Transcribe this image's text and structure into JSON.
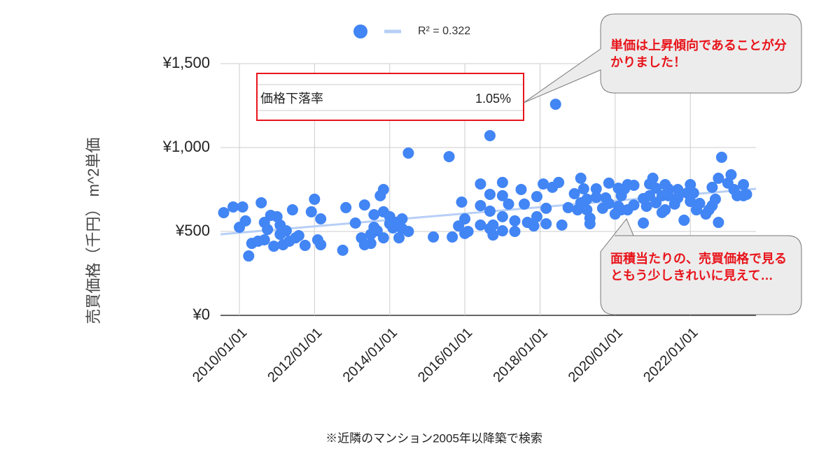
{
  "chart_data": {
    "type": "scatter",
    "y_label": "売買価格（千円） m^2単価",
    "x_label": "※近隣のマンション2005年以降築で検索",
    "xlim": [
      "2009/07/01",
      "2023/10/01"
    ],
    "xticks": [
      "2010/01/01",
      "2012/01/01",
      "2014/01/01",
      "2016/01/01",
      "2018/01/01",
      "2020/01/01",
      "2022/01/01"
    ],
    "ylim": [
      0,
      1500
    ],
    "yticks": [
      {
        "value": 0,
        "label": "¥0"
      },
      {
        "value": 500,
        "label": "¥500"
      },
      {
        "value": 1000,
        "label": "¥1,000"
      },
      {
        "value": 1500,
        "label": "¥1,500"
      }
    ],
    "grid": true,
    "series": [
      {
        "color": "#4285f4",
        "x": [
          "2009/08/01",
          "2009/11/01",
          "2010/01/01",
          "2010/02/01",
          "2010/03/01",
          "2010/04/01",
          "2010/05/01",
          "2010/07/01",
          "2010/08/01",
          "2010/09/01",
          "2010/09/01",
          "2010/10/01",
          "2010/11/01",
          "2010/12/01",
          "2011/01/01",
          "2011/02/01",
          "2011/02/01",
          "2011/03/01",
          "2011/04/01",
          "2011/05/01",
          "2011/06/01",
          "2011/07/01",
          "2011/08/01",
          "2011/10/01",
          "2011/12/01",
          "2012/01/01",
          "2012/02/01",
          "2012/03/01",
          "2012/03/01",
          "2012/10/01",
          "2012/11/01",
          "2013/02/01",
          "2013/05/01",
          "2013/04/01",
          "2013/05/01",
          "2013/07/01",
          "2013/07/01",
          "2013/08/01",
          "2013/08/01",
          "2013/09/01",
          "2013/10/01",
          "2013/11/01",
          "2013/11/01",
          "2013/11/01",
          "2014/01/01",
          "2014/01/01",
          "2014/02/01",
          "2014/03/01",
          "2014/04/01",
          "2014/05/01",
          "2014/05/01",
          "2014/07/01",
          "2014/07/01",
          "2015/03/01",
          "2015/08/01",
          "2015/09/01",
          "2015/11/01",
          "2015/12/01",
          "2016/01/01",
          "2016/01/01",
          "2016/02/01",
          "2016/06/01",
          "2016/06/01",
          "2016/06/01",
          "2016/09/01",
          "2016/09/01",
          "2016/09/01",
          "2016/09/01",
          "2016/10/01",
          "2016/10/01",
          "2017/01/01",
          "2017/01/01",
          "2017/01/01",
          "2017/01/01",
          "2017/03/01",
          "2017/05/01",
          "2017/05/01",
          "2017/07/01",
          "2017/08/01",
          "2017/09/01",
          "2017/11/01",
          "2017/12/01",
          "2017/12/01",
          "2018/02/01",
          "2018/03/01",
          "2018/03/01",
          "2018/05/01",
          "2018/06/01",
          "2018/07/01",
          "2018/08/01",
          "2018/10/01",
          "2018/12/01",
          "2019/01/01",
          "2019/02/01",
          "2019/02/01",
          "2019/03/01",
          "2019/04/01",
          "2019/04/01",
          "2019/05/01",
          "2019/05/01",
          "2019/07/01",
          "2019/07/01",
          "2019/09/01",
          "2019/10/01",
          "2019/11/01",
          "2019/11/01",
          "2020/01/01",
          "2020/02/01",
          "2020/02/01",
          "2020/03/01",
          "2020/03/01",
          "2020/04/01",
          "2020/05/01",
          "2020/05/01",
          "2020/07/01",
          "2020/07/01",
          "2020/10/01",
          "2020/10/01",
          "2020/11/01",
          "2020/12/01",
          "2020/12/01",
          "2021/01/01",
          "2021/02/01",
          "2021/02/01",
          "2021/04/01",
          "2021/04/01",
          "2021/05/01",
          "2021/05/01",
          "2021/06/01",
          "2021/06/01",
          "2021/08/01",
          "2021/09/01",
          "2021/09/01",
          "2021/11/01",
          "2021/12/01",
          "2022/01/01",
          "2022/01/01",
          "2022/02/01",
          "2022/03/01",
          "2022/04/01",
          "2022/06/01",
          "2022/07/01",
          "2022/08/01",
          "2022/08/01",
          "2022/09/01",
          "2022/10/01",
          "2022/10/01",
          "2022/11/01",
          "2023/01/01",
          "2023/02/01",
          "2023/03/01",
          "2023/04/01",
          "2023/06/01",
          "2023/06/01",
          "2023/07/01"
        ],
        "values": [
          612,
          646,
          525,
          646,
          563,
          354,
          429,
          442,
          671,
          554,
          450,
          512,
          596,
          412,
          588,
          538,
          483,
          421,
          504,
          442,
          629,
          462,
          475,
          417,
          617,
          692,
          450,
          575,
          421,
          388,
          642,
          550,
          658,
          462,
          421,
          483,
          429,
          600,
          525,
          504,
          713,
          750,
          617,
          462,
          546,
          588,
          521,
          554,
          462,
          517,
          575,
          967,
          500,
          467,
          946,
          467,
          533,
          675,
          575,
          488,
          500,
          654,
          783,
          538,
          517,
          1071,
          721,
          621,
          479,
          538,
          792,
          713,
          588,
          504,
          663,
          563,
          500,
          750,
          663,
          554,
          533,
          708,
          588,
          783,
          638,
          546,
          763,
          1258,
          792,
          538,
          642,
          725,
          629,
          817,
          671,
          754,
          692,
          629,
          579,
          546,
          704,
          754,
          638,
          700,
          788,
          667,
          604,
          758,
          650,
          713,
          629,
          754,
          779,
          629,
          775,
          658,
          696,
          550,
          650,
          783,
          713,
          817,
          671,
          758,
          713,
          613,
          779,
          629,
          754,
          713,
          663,
          750,
          700,
          567,
          729,
          779,
          679,
          729,
          629,
          667,
          604,
          629,
          654,
          763,
          692,
          817,
          554,
          942,
          788,
          838,
          750,
          713,
          779,
          713,
          721
        ]
      }
    ],
    "trendline": {
      "name": "R² = 0.322",
      "color": "#b7cff6",
      "x": [
        "2009/07/01",
        "2023/10/01"
      ],
      "values": [
        483,
        754
      ]
    },
    "overlay_table": {
      "label": "価格下落率",
      "value": "1.05%"
    },
    "callouts": [
      "単価は上昇傾向であることが分かりました！",
      "面積当たりの、売買価格で見るともう少しきれいに見えて…"
    ]
  }
}
